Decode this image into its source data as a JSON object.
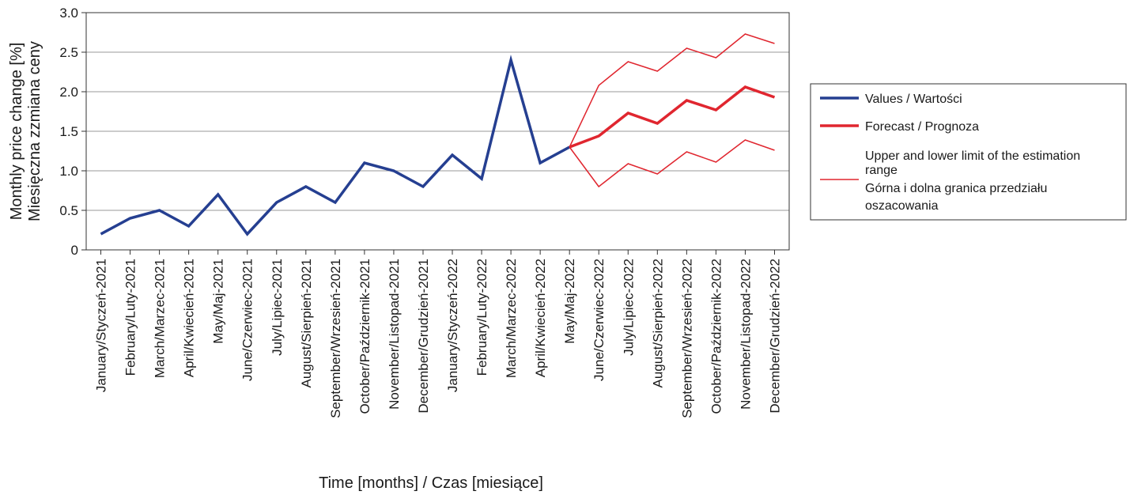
{
  "chart_data": {
    "type": "line",
    "xlabel": "Time [months] / Czas [miesiące]",
    "ylabel_lines": [
      "Monthly price change [%]",
      "Miesięczna zzmiana ceny"
    ],
    "ylim": [
      0,
      3.0
    ],
    "yticks": [
      {
        "value": 0,
        "label": "0"
      },
      {
        "value": 0.5,
        "label": "0.5"
      },
      {
        "value": 1.0,
        "label": "1.0"
      },
      {
        "value": 1.5,
        "label": "1.5"
      },
      {
        "value": 2.0,
        "label": "2.0"
      },
      {
        "value": 2.5,
        "label": "2.5"
      },
      {
        "value": 3.0,
        "label": "3.0"
      }
    ],
    "grid": true,
    "legend_position": "right",
    "categories": [
      "January/Styczeń-2021",
      "February/Luty-2021",
      "March/Marzec-2021",
      "April/Kwiecień-2021",
      "May/Maj-2021",
      "June/Czerwiec-2021",
      "July/Lipiec-2021",
      "August/Sierpień-2021",
      "September/Wrzesień-2021",
      "October/Październik-2021",
      "November/Listopad-2021",
      "December/Grudzień-2021",
      "January/Styczeń-2022",
      "February/Luty-2022",
      "March/Marzec-2022",
      "April/Kwiecień-2022",
      "May/Maj-2022",
      "June/Czerwiec-2022",
      "July/Lipiec-2022",
      "August/Sierpień-2022",
      "September/Wrzesień-2022",
      "October/Październik-2022",
      "November/Listopad-2022",
      "December/Grudzień-2022"
    ],
    "series": [
      {
        "name": "Values / Wartości",
        "color": "#253f91",
        "width": 3.5,
        "values": [
          0.2,
          0.4,
          0.5,
          0.3,
          0.7,
          0.2,
          0.6,
          0.8,
          0.6,
          1.1,
          1.0,
          0.8,
          1.2,
          0.9,
          2.4,
          1.1,
          1.3,
          null,
          null,
          null,
          null,
          null,
          null,
          null
        ]
      },
      {
        "name": "Forecast / Prognoza",
        "color": "#e0262f",
        "width": 3.5,
        "values": [
          null,
          null,
          null,
          null,
          null,
          null,
          null,
          null,
          null,
          null,
          null,
          null,
          null,
          null,
          null,
          null,
          1.3,
          1.44,
          1.73,
          1.6,
          1.89,
          1.77,
          2.06,
          1.93
        ]
      },
      {
        "name": "Upper and lower limit of the estimation range Górna i dolna granica przedziału oszacowania",
        "color": "#e0262f",
        "width": 1.5,
        "values": [
          null,
          null,
          null,
          null,
          null,
          null,
          null,
          null,
          null,
          null,
          null,
          null,
          null,
          null,
          null,
          null,
          1.3,
          2.08,
          2.38,
          2.26,
          2.55,
          2.43,
          2.73,
          2.61
        ]
      },
      {
        "name": "",
        "color": "#e0262f",
        "width": 1.5,
        "values": [
          null,
          null,
          null,
          null,
          null,
          null,
          null,
          null,
          null,
          null,
          null,
          null,
          null,
          null,
          null,
          null,
          1.3,
          0.8,
          1.09,
          0.96,
          1.24,
          1.11,
          1.39,
          1.26
        ]
      }
    ],
    "legend": [
      {
        "lines": [
          "Values / Wartości"
        ],
        "color": "#253f91",
        "width": 3.5
      },
      {
        "lines": [
          "Forecast / Prognoza"
        ],
        "color": "#e0262f",
        "width": 3.5
      },
      {
        "lines": [
          "Upper and lower limit of the estimation",
          "range",
          "Górna i dolna granica przedziału",
          "oszacowania"
        ],
        "color": "#e0262f",
        "width": 1.5
      }
    ]
  }
}
